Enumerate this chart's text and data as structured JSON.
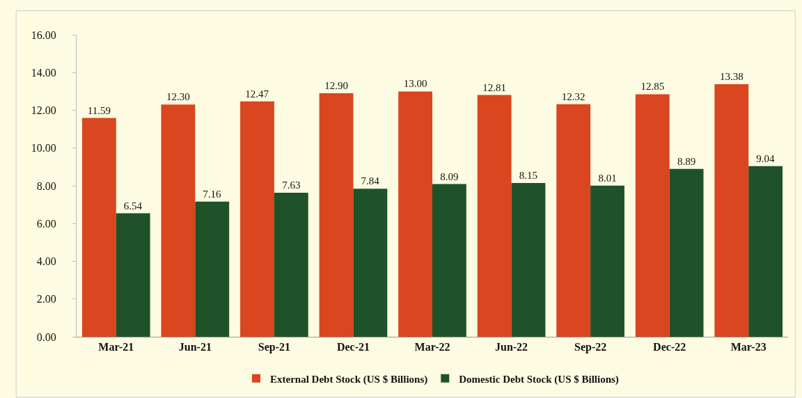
{
  "chart_data": {
    "type": "bar",
    "categories": [
      "Mar-21",
      "Jun-21",
      "Sep-21",
      "Dec-21",
      "Mar-22",
      "Jun-22",
      "Sep-22",
      "Dec-22",
      "Mar-23"
    ],
    "series": [
      {
        "name": "External Debt Stock (US $ Billions)",
        "color": "#d9461f",
        "values": [
          11.59,
          12.3,
          12.47,
          12.9,
          13.0,
          12.81,
          12.32,
          12.85,
          13.38
        ],
        "value_labels": [
          "11.59",
          "12.30",
          "12.47",
          "12.90",
          "13.00",
          "12.81",
          "12.32",
          "12.85",
          "13.38"
        ]
      },
      {
        "name": "Domestic Debt Stock (US $ Billions)",
        "color": "#1f5228",
        "values": [
          6.54,
          7.16,
          7.63,
          7.84,
          8.09,
          8.15,
          8.01,
          8.89,
          9.04
        ],
        "value_labels": [
          "6.54",
          "7.16",
          "7.63",
          "7.84",
          "8.09",
          "8.15",
          "8.01",
          "8.89",
          "9.04"
        ]
      }
    ],
    "ylim": [
      0,
      16
    ],
    "yticks": [
      {
        "value": 0,
        "label": "0.00"
      },
      {
        "value": 2,
        "label": "2.00"
      },
      {
        "value": 4,
        "label": "4.00"
      },
      {
        "value": 6,
        "label": "6.00"
      },
      {
        "value": 8,
        "label": "8.00"
      },
      {
        "value": 10,
        "label": "10.00"
      },
      {
        "value": 12,
        "label": "12.00"
      },
      {
        "value": 14,
        "label": "14.00"
      },
      {
        "value": 16,
        "label": "16.00"
      }
    ],
    "grid": false,
    "legend": "bottom"
  }
}
